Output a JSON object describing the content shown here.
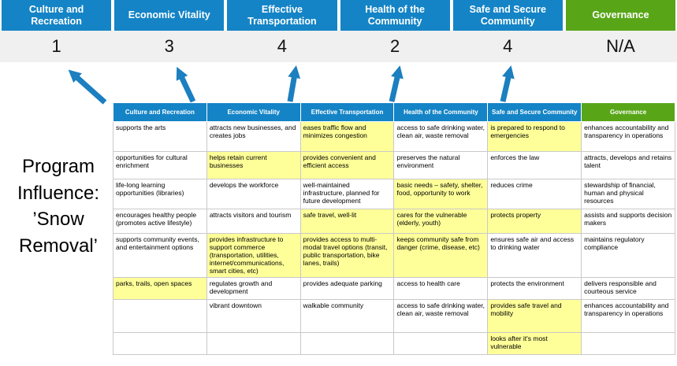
{
  "colors": {
    "blue": "#1484C6",
    "green": "#58A618",
    "highlight": "#FFFF99",
    "arrow": "#1B7FC0"
  },
  "program_label": "Program Influence: ’Snow Removal’",
  "scoreboard": {
    "columns": [
      {
        "label": "Culture and Recreation",
        "score": "1",
        "theme": "blue"
      },
      {
        "label": "Economic Vitality",
        "score": "3",
        "theme": "blue"
      },
      {
        "label": "Effective Transportation",
        "score": "4",
        "theme": "blue"
      },
      {
        "label": "Health of the Community",
        "score": "2",
        "theme": "blue"
      },
      {
        "label": "Safe and Secure Community",
        "score": "4",
        "theme": "blue"
      },
      {
        "label": "Governance",
        "score": "N/A",
        "theme": "green"
      }
    ]
  },
  "matrix": {
    "headers": [
      {
        "label": "Culture and Recreation",
        "theme": "blue"
      },
      {
        "label": "Economic Vitality",
        "theme": "blue"
      },
      {
        "label": "Effective Transportation",
        "theme": "blue"
      },
      {
        "label": "Health of the Community",
        "theme": "blue"
      },
      {
        "label": "Safe and Secure Community",
        "theme": "blue"
      },
      {
        "label": "Governance",
        "theme": "green"
      }
    ],
    "rows": [
      [
        {
          "text": "supports the arts",
          "highlight": false
        },
        {
          "text": "attracts new businesses, and creates jobs",
          "highlight": false
        },
        {
          "text": "eases traffic flow and minimizes congestion",
          "highlight": true
        },
        {
          "text": "access to safe drinking water, clean air, waste removal",
          "highlight": false
        },
        {
          "text": "is prepared to respond to emergencies",
          "highlight": true
        },
        {
          "text": "enhances accountability and transparency in operations",
          "highlight": false
        }
      ],
      [
        {
          "text": "opportunities for cultural enrichment",
          "highlight": false
        },
        {
          "text": "helps retain current businesses",
          "highlight": true
        },
        {
          "text": "provides convenient and efficient access",
          "highlight": true
        },
        {
          "text": "preserves the natural environment",
          "highlight": false
        },
        {
          "text": "enforces the law",
          "highlight": false
        },
        {
          "text": "attracts, develops and retains talent",
          "highlight": false
        }
      ],
      [
        {
          "text": "life-long learning opportunities (libraries)",
          "highlight": false
        },
        {
          "text": "develops the workforce",
          "highlight": false
        },
        {
          "text": "well-maintained infrastructure, planned for future development",
          "highlight": false
        },
        {
          "text": "basic needs – safety, shelter, food, opportunity to work",
          "highlight": true
        },
        {
          "text": "reduces crime",
          "highlight": false
        },
        {
          "text": "stewardship of financial, human and physical resources",
          "highlight": false
        }
      ],
      [
        {
          "text": "encourages healthy people (promotes active lifestyle)",
          "highlight": false
        },
        {
          "text": "attracts visitors and tourism",
          "highlight": false
        },
        {
          "text": "safe travel, well-lit",
          "highlight": true
        },
        {
          "text": "cares for the vulnerable (elderly, youth)",
          "highlight": true
        },
        {
          "text": "protects property",
          "highlight": true
        },
        {
          "text": "assists and supports decision makers",
          "highlight": false
        }
      ],
      [
        {
          "text": "supports community events, and entertainment options",
          "highlight": false
        },
        {
          "text": "provides infrastructure to support commerce (transportation, utilities, internet/communications, smart cities, etc)",
          "highlight": true
        },
        {
          "text": "provides access to multi-modal travel options (transit, public transportation, bike lanes, trails)",
          "highlight": true
        },
        {
          "text": "keeps community safe from danger (crime, disease, etc)",
          "highlight": true
        },
        {
          "text": "ensures safe air and access to drinking water",
          "highlight": false
        },
        {
          "text": "maintains regulatory compliance",
          "highlight": false
        }
      ],
      [
        {
          "text": "parks, trails, open spaces",
          "highlight": true
        },
        {
          "text": "regulates growth and development",
          "highlight": false
        },
        {
          "text": "provides adequate parking",
          "highlight": false
        },
        {
          "text": "access to health care",
          "highlight": false
        },
        {
          "text": "protects the environment",
          "highlight": false
        },
        {
          "text": "delivers responsible and courteous service",
          "highlight": false
        }
      ],
      [
        {
          "text": "",
          "highlight": false
        },
        {
          "text": "vibrant downtown",
          "highlight": false
        },
        {
          "text": "walkable community",
          "highlight": false
        },
        {
          "text": "access to safe drinking water, clean air, waste removal",
          "highlight": false
        },
        {
          "text": "provides safe travel and mobility",
          "highlight": true
        },
        {
          "text": "enhances accountability and transparency in operations",
          "highlight": false
        }
      ],
      [
        {
          "text": "",
          "highlight": false
        },
        {
          "text": "",
          "highlight": false
        },
        {
          "text": "",
          "highlight": false
        },
        {
          "text": "",
          "highlight": false
        },
        {
          "text": "looks after it's most vulnerable",
          "highlight": true
        },
        {
          "text": "",
          "highlight": false
        }
      ]
    ]
  }
}
